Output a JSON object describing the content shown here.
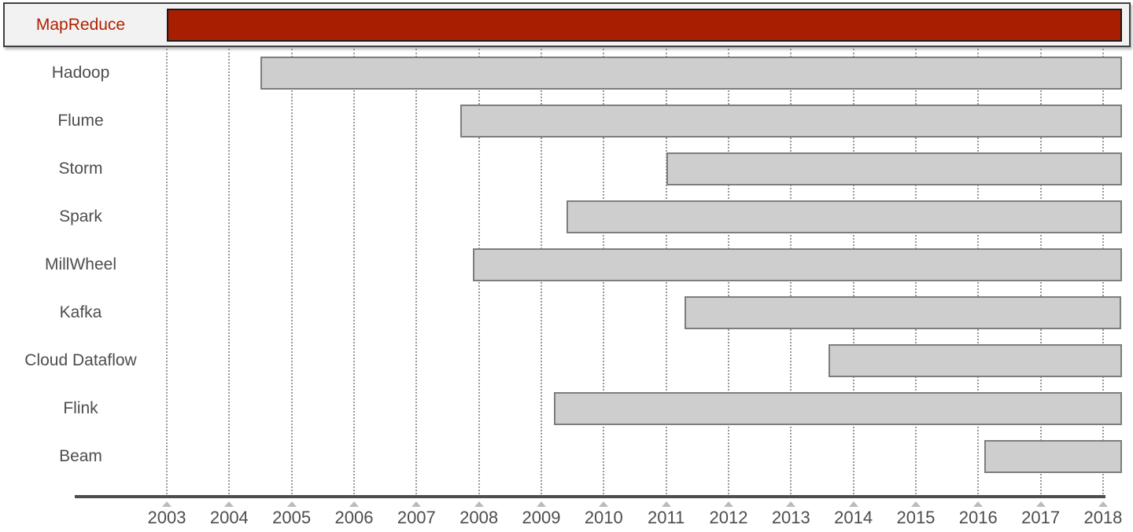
{
  "chart_data": {
    "type": "gantt",
    "description_visible_text_only": "",
    "x_ticks": [
      2003,
      2004,
      2005,
      2006,
      2007,
      2008,
      2009,
      2010,
      2011,
      2012,
      2013,
      2014,
      2015,
      2016,
      2017,
      2018
    ],
    "xlim": [
      2001.5,
      2018.3
    ],
    "grid": "vertical-dotted",
    "legend": "none",
    "series": [
      {
        "label": "MapReduce",
        "start": 2003.0,
        "end": 2018.3,
        "highlighted": true
      },
      {
        "label": "Hadoop",
        "start": 2004.5,
        "end": 2018.3,
        "highlighted": false
      },
      {
        "label": "Flume",
        "start": 2007.7,
        "end": 2018.3,
        "highlighted": false
      },
      {
        "label": "Storm",
        "start": 2011.0,
        "end": 2018.3,
        "highlighted": false
      },
      {
        "label": "Spark",
        "start": 2009.4,
        "end": 2018.3,
        "highlighted": false
      },
      {
        "label": "MillWheel",
        "start": 2007.9,
        "end": 2018.3,
        "highlighted": false
      },
      {
        "label": "Kafka",
        "start": 2011.3,
        "end": 2018.3,
        "highlighted": false
      },
      {
        "label": "Cloud Dataflow",
        "start": 2013.6,
        "end": 2018.3,
        "highlighted": false
      },
      {
        "label": "Flink",
        "start": 2009.2,
        "end": 2018.3,
        "highlighted": false
      },
      {
        "label": "Beam",
        "start": 2016.1,
        "end": 2018.3,
        "highlighted": false
      }
    ]
  },
  "colors": {
    "highlight_bar": "#a81e00",
    "highlight_bar_border": "#1a1a1a",
    "highlight_label": "#b22000",
    "bar_fill": "#cecece",
    "bar_border": "#7d7d7d",
    "row_highlight_bg": "#f2f2f2",
    "row_highlight_border": "#404040",
    "label_color": "#4d4d4d",
    "axis_color": "#4d4d4d",
    "gridline_color": "#999999",
    "tick_marker_color": "#bbbbbb"
  }
}
